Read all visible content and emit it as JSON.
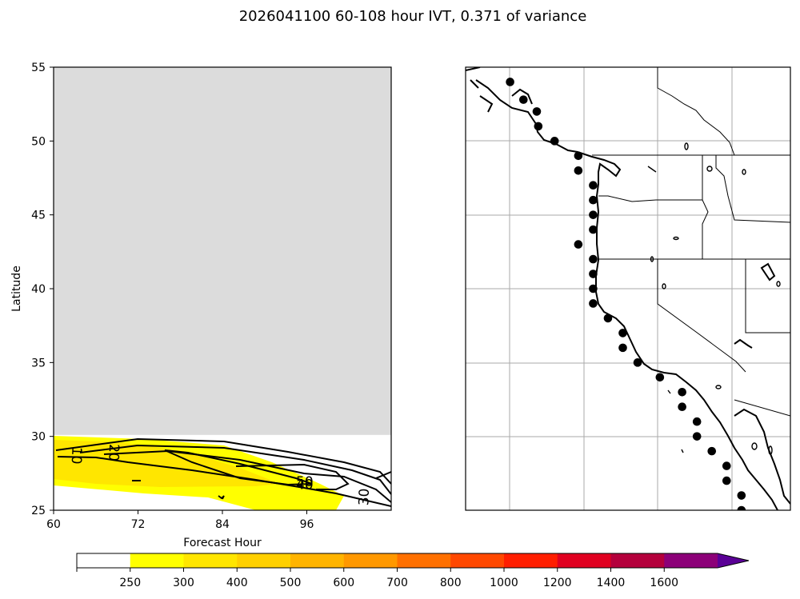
{
  "title": "2026041100 60-108 hour IVT, 0.371 of variance",
  "chart_data": [
    {
      "type": "contour",
      "xlabel": "Forecast Hour",
      "ylabel": "Latitude",
      "xlim": [
        60,
        108
      ],
      "ylim": [
        25,
        55
      ],
      "xticks": [
        60,
        72,
        84,
        96
      ],
      "yticks": [
        25,
        30,
        35,
        40,
        45,
        50,
        55
      ],
      "masked_color": "#dcdcdc",
      "masked_above_latitude": 30.1,
      "contour_labels": [
        {
          "text": "10",
          "x": 63.2,
          "y": 28.7,
          "rot": 92
        },
        {
          "text": "20",
          "x": 68.5,
          "y": 28.9,
          "rot": 92
        },
        {
          "text": "50",
          "x": 95.7,
          "y": 26.9,
          "rot": 0
        },
        {
          "text": "40",
          "x": 95.7,
          "y": 26.7,
          "rot": 0
        },
        {
          "text": "30",
          "x": 104.2,
          "y": 25.9,
          "rot": -88
        }
      ]
    },
    {
      "type": "map",
      "region": "US West Coast",
      "points_lat_lon": [
        [
          54,
          -132.3
        ],
        [
          52.8,
          -131.4
        ],
        [
          52,
          -130.5
        ],
        [
          51,
          -130.4
        ],
        [
          50,
          -129.3
        ],
        [
          49,
          -127.7
        ],
        [
          48,
          -127.7
        ],
        [
          47,
          -126.7
        ],
        [
          46,
          -126.7
        ],
        [
          45,
          -126.7
        ],
        [
          44,
          -126.7
        ],
        [
          43,
          -127.7
        ],
        [
          42,
          -126.7
        ],
        [
          41,
          -126.7
        ],
        [
          40,
          -126.7
        ],
        [
          39,
          -126.7
        ],
        [
          38,
          -125.7
        ],
        [
          37,
          -124.7
        ],
        [
          36,
          -124.7
        ],
        [
          35,
          -123.7
        ],
        [
          34,
          -122.2
        ],
        [
          33,
          -120.7
        ],
        [
          32,
          -120.7
        ],
        [
          31,
          -119.7
        ],
        [
          30,
          -119.7
        ],
        [
          29,
          -118.7
        ],
        [
          28,
          -117.7
        ],
        [
          27,
          -117.7
        ],
        [
          26,
          -116.7
        ],
        [
          25,
          -116.7
        ]
      ]
    }
  ],
  "colorbar": {
    "ticks": [
      "250",
      "300",
      "400",
      "500",
      "600",
      "700",
      "800",
      "1000",
      "1200",
      "1400",
      "1600"
    ],
    "colors": [
      "#ffffff",
      "#ffff00",
      "#ffe600",
      "#ffd000",
      "#ffb400",
      "#ff9800",
      "#ff7000",
      "#ff4800",
      "#ff1e00",
      "#e00020",
      "#b4003c",
      "#8c0078",
      "#6c0096",
      "#5a0096"
    ]
  }
}
